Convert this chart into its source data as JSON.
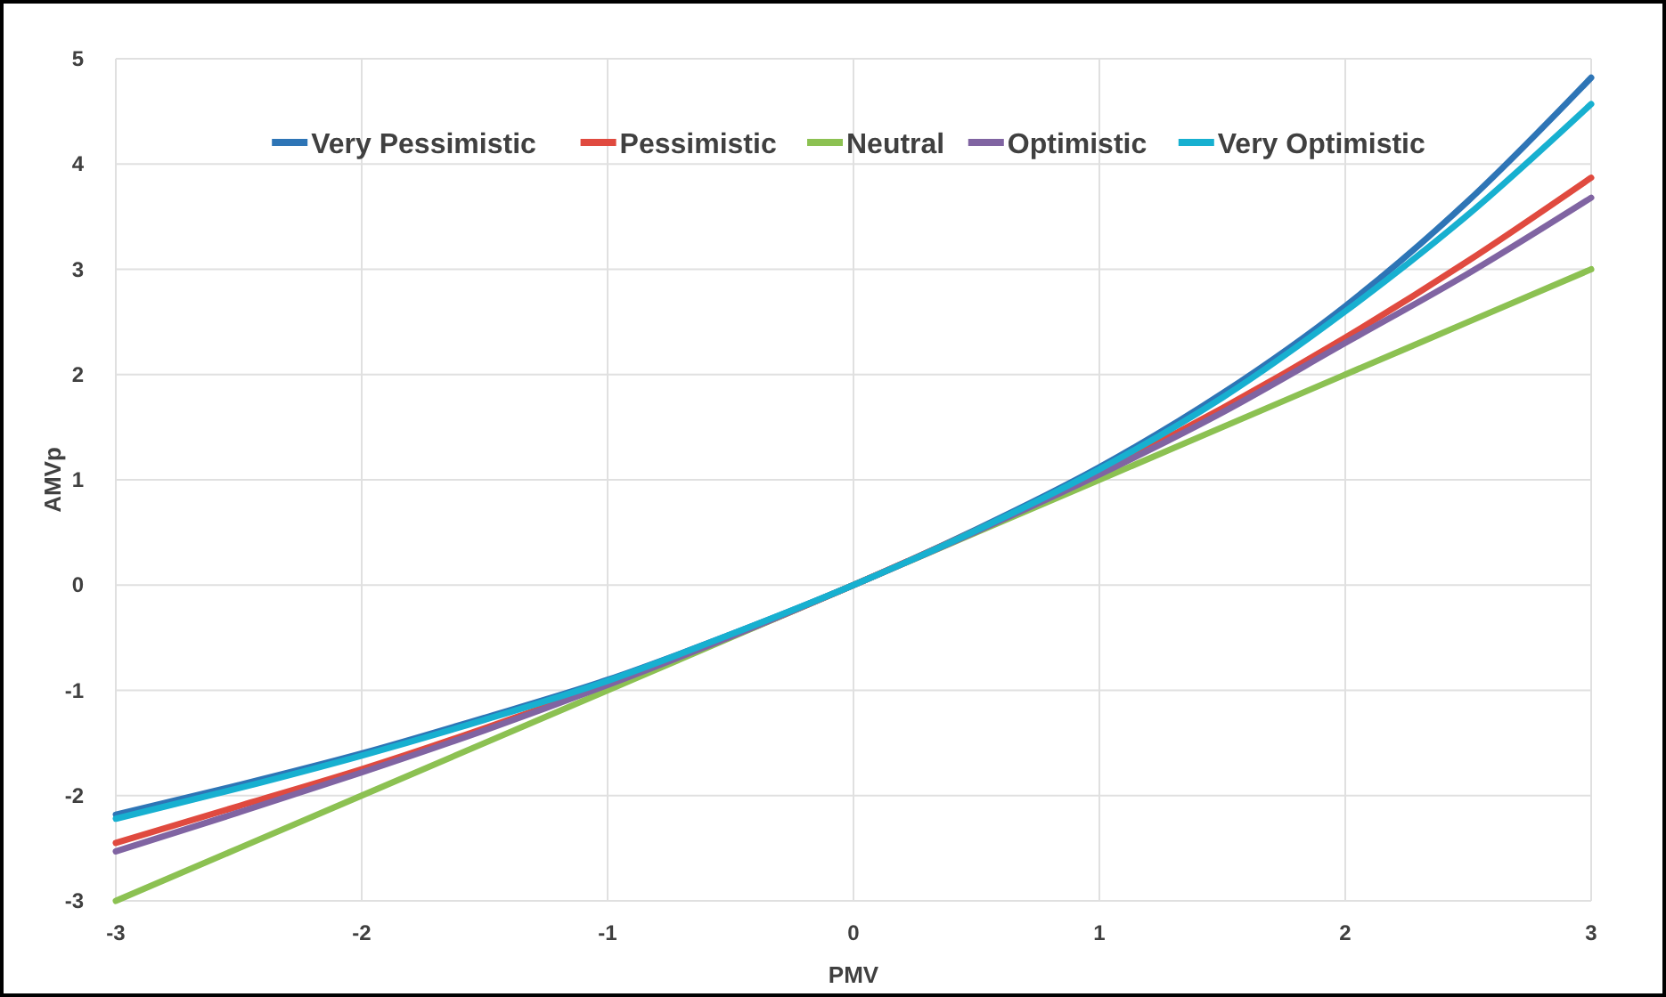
{
  "chart_data": {
    "type": "line",
    "xlabel": "PMV",
    "ylabel": "AMVp",
    "x": [
      -3,
      -2.5,
      -2,
      -1.5,
      -1,
      -0.5,
      0,
      0.5,
      1,
      1.5,
      2,
      2.5,
      3
    ],
    "xlim": [
      -3,
      3
    ],
    "xticks": [
      -3,
      -2,
      -1,
      0,
      1,
      2,
      3
    ],
    "ylim": [
      -3,
      5
    ],
    "yticks": [
      -3,
      -2,
      -1,
      0,
      1,
      2,
      3,
      4,
      5
    ],
    "grid": true,
    "legend": "top",
    "marker": "none",
    "line_style": "solid",
    "series": [
      {
        "name": "Very Pessimistic",
        "color": "#2e75b6",
        "values": [
          -2.18,
          -1.9,
          -1.6,
          -1.26,
          -0.9,
          -0.47,
          0,
          0.53,
          1.12,
          1.82,
          2.65,
          3.65,
          4.82
        ]
      },
      {
        "name": "Pessimistic",
        "color": "#e04a3f",
        "values": [
          -2.45,
          -2.1,
          -1.75,
          -1.36,
          -0.94,
          -0.49,
          0,
          0.52,
          1.07,
          1.68,
          2.35,
          3.08,
          3.87
        ]
      },
      {
        "name": "Neutral",
        "color": "#8cc152",
        "values": [
          -3,
          -2.5,
          -2,
          -1.5,
          -1,
          -0.5,
          0,
          0.5,
          1,
          1.5,
          2,
          2.5,
          3
        ]
      },
      {
        "name": "Optimistic",
        "color": "#8064a2",
        "values": [
          -2.53,
          -2.16,
          -1.78,
          -1.38,
          -0.95,
          -0.49,
          0,
          0.51,
          1.05,
          1.64,
          2.3,
          2.96,
          3.68
        ]
      },
      {
        "name": "Very Optimistic",
        "color": "#17b0d0",
        "values": [
          -2.22,
          -1.93,
          -1.62,
          -1.28,
          -0.91,
          -0.47,
          0,
          0.52,
          1.1,
          1.78,
          2.6,
          3.52,
          4.57
        ]
      }
    ]
  }
}
